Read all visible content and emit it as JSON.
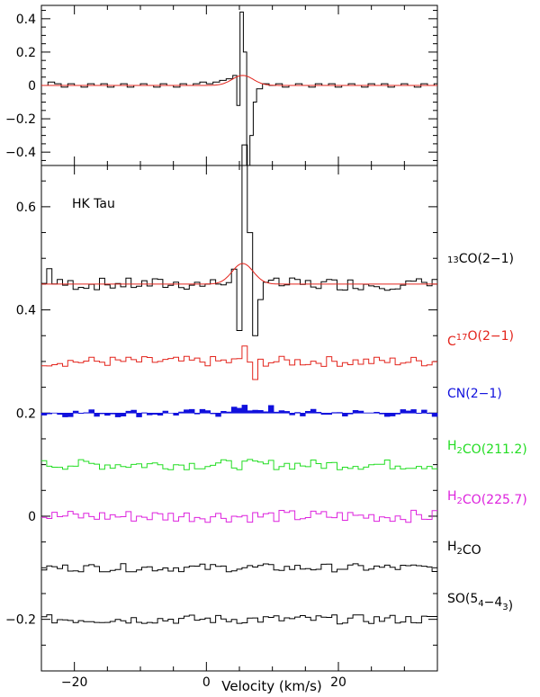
{
  "chart_data": [
    {
      "type": "line",
      "panel": "top",
      "xlim": [
        -25,
        35
      ],
      "ylim": [
        -0.48,
        0.48
      ],
      "yticks": [
        {
          "value": 0.4,
          "label": "0.4"
        },
        {
          "value": 0.2,
          "label": "0.2"
        },
        {
          "value": 0,
          "label": "0"
        },
        {
          "value": -0.2,
          "label": "−0.2"
        },
        {
          "value": -0.4,
          "label": "−0.4"
        }
      ],
      "series": [
        {
          "style": "step",
          "color": "#000000",
          "points": [
            [
              -25,
              0.0
            ],
            [
              -24,
              0.02
            ],
            [
              -23,
              0.01
            ],
            [
              -22,
              -0.01
            ],
            [
              -21,
              0.01
            ],
            [
              -20,
              0.0
            ],
            [
              -19,
              -0.01
            ],
            [
              -18,
              0.01
            ],
            [
              -17,
              0.0
            ],
            [
              -16,
              0.01
            ],
            [
              -15,
              -0.01
            ],
            [
              -14,
              0.0
            ],
            [
              -13,
              0.01
            ],
            [
              -12,
              -0.01
            ],
            [
              -11,
              0.0
            ],
            [
              -10,
              0.01
            ],
            [
              -9,
              0.0
            ],
            [
              -8,
              -0.01
            ],
            [
              -7,
              0.01
            ],
            [
              -6,
              0.0
            ],
            [
              -5,
              -0.01
            ],
            [
              -4,
              0.01
            ],
            [
              -3,
              0.0
            ],
            [
              -2,
              0.01
            ],
            [
              -1,
              0.02
            ],
            [
              0,
              0.01
            ],
            [
              1,
              0.02
            ],
            [
              2,
              0.03
            ],
            [
              3,
              0.04
            ],
            [
              4,
              0.06
            ],
            [
              4.6,
              -0.12
            ],
            [
              5.1,
              0.44
            ],
            [
              5.6,
              0.2
            ],
            [
              6.1,
              -0.48
            ],
            [
              6.6,
              -0.3
            ],
            [
              7.1,
              -0.1
            ],
            [
              7.6,
              -0.02
            ],
            [
              8.5,
              0.01
            ],
            [
              9.5,
              0.0
            ],
            [
              10.5,
              0.01
            ],
            [
              11.5,
              -0.01
            ],
            [
              12.5,
              0.0
            ],
            [
              13.5,
              0.01
            ],
            [
              14.5,
              0.0
            ],
            [
              15.5,
              -0.01
            ],
            [
              16.5,
              0.01
            ],
            [
              17.5,
              0.0
            ],
            [
              18.5,
              0.01
            ],
            [
              19.5,
              -0.01
            ],
            [
              20.5,
              0.0
            ],
            [
              21.5,
              0.01
            ],
            [
              22.5,
              0.0
            ],
            [
              23.5,
              -0.01
            ],
            [
              24.5,
              0.01
            ],
            [
              25.5,
              0.0
            ],
            [
              26.5,
              0.01
            ],
            [
              27.5,
              -0.01
            ],
            [
              28.5,
              0.0
            ],
            [
              29.5,
              0.01
            ],
            [
              30.5,
              0.0
            ],
            [
              31.5,
              -0.01
            ],
            [
              32.5,
              0.01
            ],
            [
              33.5,
              0.0
            ],
            [
              34.5,
              0.01
            ]
          ]
        },
        {
          "style": "gaussian",
          "color": "#e3241c",
          "base": 0.0,
          "amplitude": 0.06,
          "center": 5.5,
          "sigma": 1.6
        }
      ]
    },
    {
      "type": "line",
      "panel": "bottom",
      "xlim": [
        -25,
        35
      ],
      "ylim": [
        -0.3,
        0.68
      ],
      "xlabel": "Velocity (km/s)",
      "xticks": [
        {
          "value": -20,
          "label": "−20"
        },
        {
          "value": 0,
          "label": "0"
        },
        {
          "value": 20,
          "label": "20"
        }
      ],
      "yticks": [
        {
          "value": 0.6,
          "label": "0.6"
        },
        {
          "value": 0.4,
          "label": "0.4"
        },
        {
          "value": 0.2,
          "label": "0.2"
        },
        {
          "value": 0,
          "label": "0"
        },
        {
          "value": -0.2,
          "label": "−0.2"
        }
      ],
      "series": [
        {
          "offset": 0.45,
          "color": "#000000",
          "noise": 0.012,
          "feature": "13co",
          "style": "step"
        },
        {
          "offset": 0.3,
          "color": "#e3241c",
          "noise": 0.01,
          "feature": "c17o",
          "style": "step"
        },
        {
          "offset": 0.2,
          "color": "#1010dd",
          "noise": 0.008,
          "feature": "cn",
          "style": "filled"
        },
        {
          "offset": 0.1,
          "color": "#22dd22",
          "noise": 0.01,
          "feature": "none",
          "style": "step"
        },
        {
          "offset": 0.0,
          "color": "#dd22dd",
          "noise": 0.012,
          "feature": "none",
          "style": "step"
        },
        {
          "offset": -0.1,
          "color": "#000000",
          "noise": 0.008,
          "feature": "none",
          "style": "step"
        },
        {
          "offset": -0.2,
          "color": "#000000",
          "noise": 0.009,
          "feature": "none",
          "style": "step"
        }
      ]
    }
  ],
  "annotations": {
    "source": "HK Tau",
    "lines": [
      {
        "color": "#000000",
        "parts": [
          {
            "t": "13",
            "sup": true
          },
          {
            "t": "CO(2−1)"
          }
        ]
      },
      {
        "color": "#e3241c",
        "parts": [
          {
            "t": "C"
          },
          {
            "t": "17",
            "sup": true
          },
          {
            "t": "O(2−1)"
          }
        ]
      },
      {
        "color": "#1010dd",
        "parts": [
          {
            "t": "CN(2−1)"
          }
        ]
      },
      {
        "color": "#22dd22",
        "parts": [
          {
            "t": "H"
          },
          {
            "t": "2",
            "sub": true
          },
          {
            "t": "CO(211.2)"
          }
        ]
      },
      {
        "color": "#dd22dd",
        "parts": [
          {
            "t": "H"
          },
          {
            "t": "2",
            "sub": true
          },
          {
            "t": "CO(225.7)"
          }
        ]
      },
      {
        "color": "#000000",
        "parts": [
          {
            "t": "H"
          },
          {
            "t": "2",
            "sub": true
          },
          {
            "t": "CO"
          }
        ]
      },
      {
        "color": "#000000",
        "parts": [
          {
            "t": "SO(5"
          },
          {
            "t": "4",
            "sub": true
          },
          {
            "t": "−4"
          },
          {
            "t": "3",
            "sub": true
          },
          {
            "t": ")"
          }
        ]
      }
    ]
  }
}
